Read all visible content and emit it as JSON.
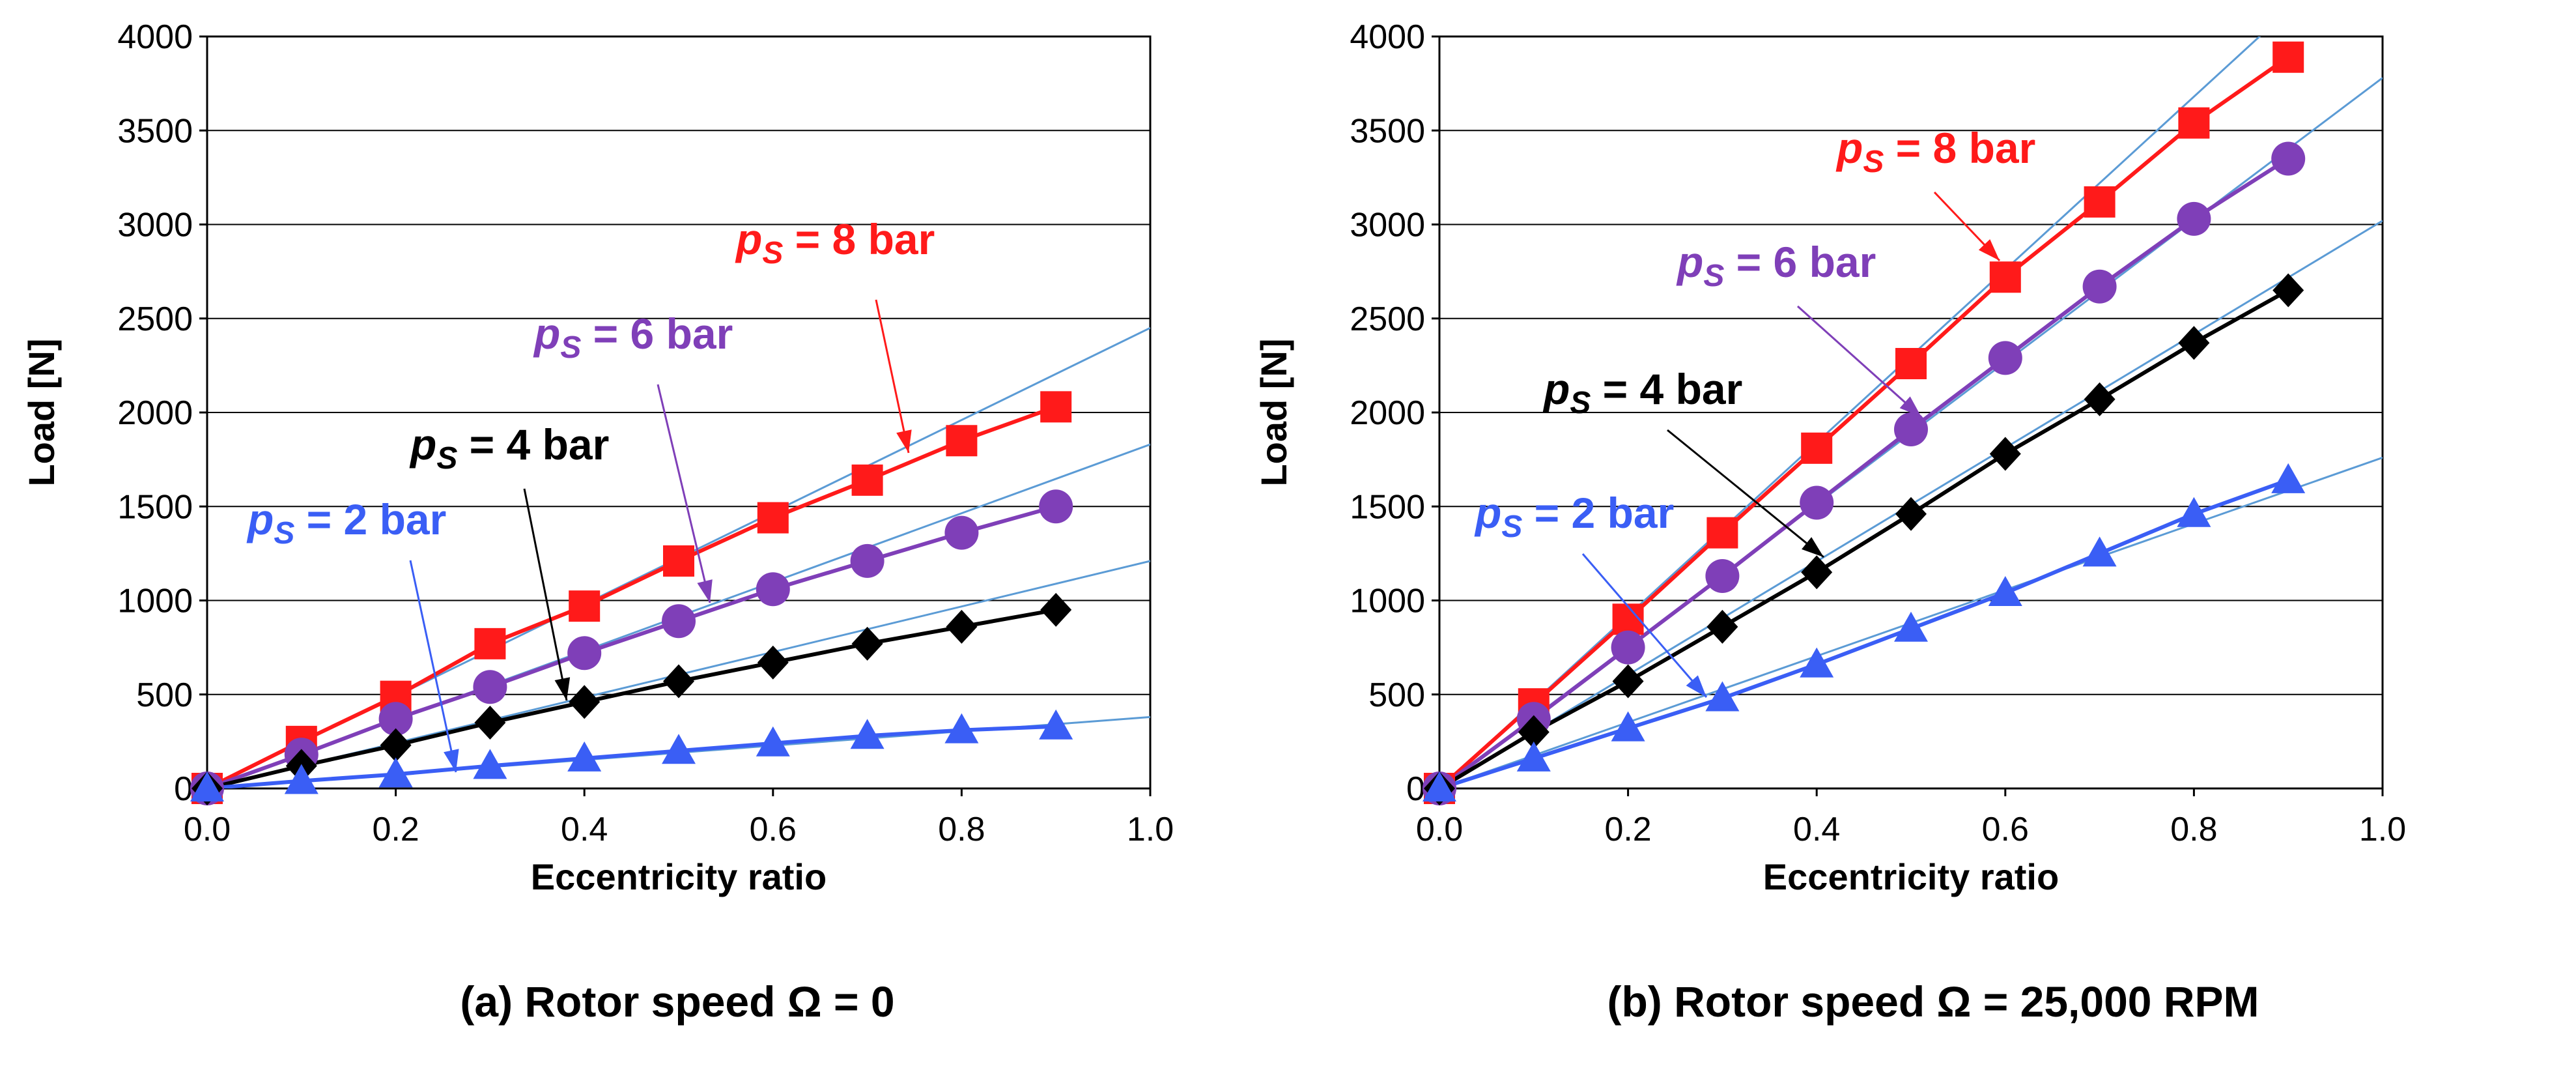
{
  "colors": {
    "ps2": "#3a5ef5",
    "ps4": "#000000",
    "ps6": "#7f3fb8",
    "ps8": "#ff1a1a",
    "fit": "#5b9bd5",
    "axis": "#000000",
    "grid": "#000000"
  },
  "chart_data": [
    {
      "type": "line",
      "caption": "(a) Rotor speed Ω = 0",
      "xlabel": "Eccentricity ratio",
      "ylabel": "Load [N]",
      "xlim": [
        0,
        1.0
      ],
      "ylim": [
        0,
        4000
      ],
      "xticks": [
        "0.0",
        "0.2",
        "0.4",
        "0.6",
        "0.8",
        "1.0"
      ],
      "yticks": [
        "0",
        "500",
        "1000",
        "1500",
        "2000",
        "2500",
        "3000",
        "3500",
        "4000"
      ],
      "x": [
        0,
        0.1,
        0.2,
        0.3,
        0.4,
        0.5,
        0.6,
        0.7,
        0.8,
        0.9
      ],
      "series": [
        {
          "key": "ps8",
          "name_main": "p",
          "name_sub": "S",
          "name_rest": " = 8 bar",
          "marker": "square",
          "values": [
            0,
            250,
            490,
            770,
            970,
            1210,
            1440,
            1640,
            1850,
            2030
          ],
          "fit_slope": 2450
        },
        {
          "key": "ps6",
          "name_main": "p",
          "name_sub": "S",
          "name_rest": " = 6 bar",
          "marker": "circle",
          "values": [
            0,
            180,
            370,
            540,
            720,
            890,
            1060,
            1210,
            1360,
            1500
          ],
          "fit_slope": 1830
        },
        {
          "key": "ps4",
          "name_main": "p",
          "name_sub": "S",
          "name_rest": " = 4 bar",
          "marker": "diamond",
          "values": [
            0,
            120,
            230,
            350,
            460,
            570,
            670,
            770,
            860,
            950
          ],
          "fit_slope": 1210
        },
        {
          "key": "ps2",
          "name_main": "p",
          "name_sub": "S",
          "name_rest": " = 2 bar",
          "marker": "triangle",
          "values": [
            0,
            40,
            75,
            120,
            160,
            200,
            240,
            280,
            310,
            330
          ],
          "fit_slope": 380
        }
      ]
    },
    {
      "type": "line",
      "caption": "(b) Rotor speed Ω = 25,000 RPM",
      "xlabel": "Eccentricity ratio",
      "ylabel": "Load [N]",
      "xlim": [
        0,
        1.0
      ],
      "ylim": [
        0,
        4000
      ],
      "xticks": [
        "0.0",
        "0.2",
        "0.4",
        "0.6",
        "0.8",
        "1.0"
      ],
      "yticks": [
        "0",
        "500",
        "1000",
        "1500",
        "2000",
        "2500",
        "3000",
        "3500",
        "4000"
      ],
      "x": [
        0,
        0.1,
        0.2,
        0.3,
        0.4,
        0.5,
        0.6,
        0.7,
        0.8,
        0.9
      ],
      "series": [
        {
          "key": "ps8",
          "name_main": "p",
          "name_sub": "S",
          "name_rest": " = 8 bar",
          "marker": "square",
          "values": [
            0,
            450,
            900,
            1360,
            1810,
            2260,
            2720,
            3120,
            3540,
            3890
          ],
          "fit_slope": 4600
        },
        {
          "key": "ps6",
          "name_main": "p",
          "name_sub": "S",
          "name_rest": " = 6 bar",
          "marker": "circle",
          "values": [
            0,
            370,
            750,
            1130,
            1520,
            1910,
            2290,
            2670,
            3030,
            3350
          ],
          "fit_slope": 3780
        },
        {
          "key": "ps4",
          "name_main": "p",
          "name_sub": "S",
          "name_rest": " = 4 bar",
          "marker": "diamond",
          "values": [
            0,
            300,
            570,
            860,
            1150,
            1460,
            1780,
            2070,
            2370,
            2650
          ],
          "fit_slope": 3020
        },
        {
          "key": "ps2",
          "name_main": "p",
          "name_sub": "S",
          "name_rest": " = 2 bar",
          "marker": "triangle",
          "values": [
            0,
            160,
            320,
            480,
            660,
            850,
            1040,
            1250,
            1460,
            1640
          ],
          "fit_slope": 1760
        }
      ]
    }
  ]
}
